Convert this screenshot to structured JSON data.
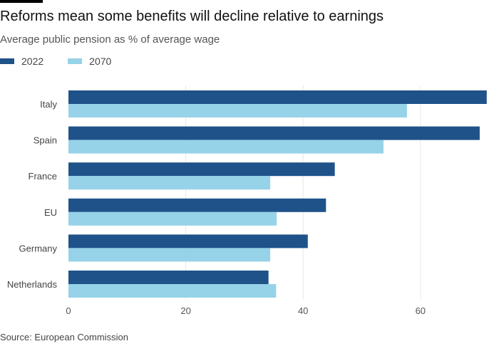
{
  "header": {
    "title": "Reforms mean some benefits will decline relative to earnings",
    "subtitle": "Average public pension as % of average wage"
  },
  "legend": [
    {
      "label": "2022",
      "color": "#1f5289"
    },
    {
      "label": "2070",
      "color": "#96d3e8"
    }
  ],
  "footer": {
    "source": "Source: European Commission"
  },
  "chart_data": {
    "type": "bar",
    "orientation": "horizontal",
    "title": "Reforms mean some benefits will decline relative to earnings",
    "subtitle": "Average public pension as % of average wage",
    "xlabel": "",
    "ylabel": "",
    "categories": [
      "Italy",
      "Spain",
      "France",
      "EU",
      "Germany",
      "Netherlands"
    ],
    "series": [
      {
        "name": "2022",
        "color": "#1f5289",
        "values": [
          71.3,
          70.1,
          45.4,
          43.9,
          40.8,
          34.1
        ]
      },
      {
        "name": "2070",
        "color": "#96d3e8",
        "values": [
          57.7,
          53.7,
          34.4,
          35.5,
          34.4,
          35.4
        ]
      }
    ],
    "xlim": [
      0,
      71.5
    ],
    "xticks": [
      0,
      20,
      40,
      60
    ],
    "xtick_labels": [
      "0",
      "20",
      "40",
      "60"
    ],
    "grid": true,
    "legend_position": "top-left",
    "source": "Source: European Commission"
  }
}
